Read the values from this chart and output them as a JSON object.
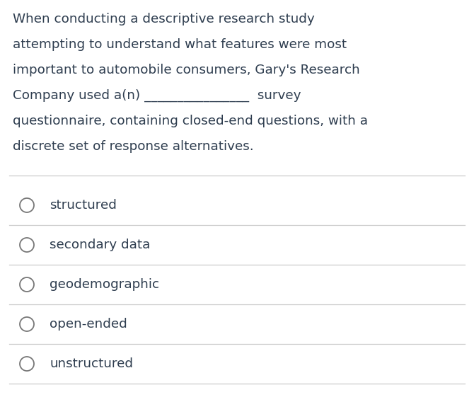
{
  "background_color": "#ffffff",
  "question_text_lines": [
    "When conducting a descriptive research study",
    "attempting to understand what features were most",
    "important to automobile consumers, Gary's Research",
    "Company used a(n) ________________  survey",
    "questionnaire, containing closed-end questions, with a",
    "discrete set of response alternatives."
  ],
  "options": [
    "structured",
    "secondary data",
    "geodemographic",
    "open-ended",
    "unstructured"
  ],
  "text_color": "#2e3d4f",
  "line_color": "#cccccc",
  "circle_edge_color": "#777777",
  "question_fontsize": 13.2,
  "option_fontsize": 13.2,
  "fig_width": 6.7,
  "fig_height": 5.92,
  "dpi": 100
}
